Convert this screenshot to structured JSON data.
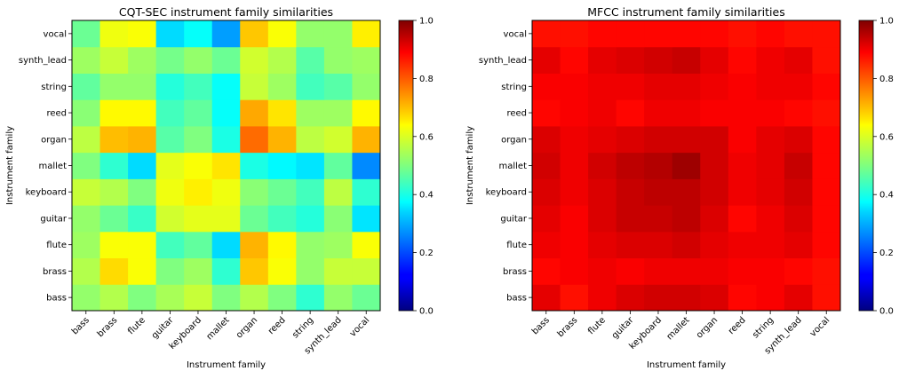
{
  "chart_data": [
    {
      "type": "heatmap",
      "title": "CQT-SEC instrument family similarities",
      "xlabel": "Instrument family",
      "ylabel": "Instrument family",
      "x_categories": [
        "bass",
        "brass",
        "flute",
        "guitar",
        "keyboard",
        "mallet",
        "organ",
        "reed",
        "string",
        "synth_lead",
        "vocal"
      ],
      "y_categories": [
        "bass",
        "brass",
        "flute",
        "guitar",
        "keyboard",
        "mallet",
        "organ",
        "reed",
        "string",
        "synth_lead",
        "vocal"
      ],
      "colorbar": {
        "min": 0.0,
        "max": 1.0,
        "ticks": [
          "0.0",
          "0.2",
          "0.4",
          "0.6",
          "0.8",
          "1.0"
        ],
        "colormap": "jet"
      },
      "values": [
        [
          0.52,
          0.55,
          0.5,
          0.54,
          0.57,
          0.5,
          0.55,
          0.5,
          0.42,
          0.52,
          0.48
        ],
        [
          0.55,
          0.66,
          0.62,
          0.5,
          0.53,
          0.42,
          0.68,
          0.62,
          0.52,
          0.57,
          0.57
        ],
        [
          0.53,
          0.62,
          0.62,
          0.44,
          0.47,
          0.34,
          0.7,
          0.63,
          0.52,
          0.53,
          0.62
        ],
        [
          0.52,
          0.48,
          0.43,
          0.58,
          0.6,
          0.6,
          0.48,
          0.44,
          0.41,
          0.51,
          0.35
        ],
        [
          0.57,
          0.55,
          0.5,
          0.61,
          0.64,
          0.61,
          0.51,
          0.48,
          0.44,
          0.56,
          0.42
        ],
        [
          0.5,
          0.42,
          0.34,
          0.6,
          0.62,
          0.65,
          0.4,
          0.37,
          0.35,
          0.47,
          0.26
        ],
        [
          0.56,
          0.69,
          0.7,
          0.46,
          0.5,
          0.4,
          0.77,
          0.7,
          0.56,
          0.58,
          0.7
        ],
        [
          0.51,
          0.63,
          0.63,
          0.44,
          0.47,
          0.38,
          0.71,
          0.65,
          0.53,
          0.53,
          0.63
        ],
        [
          0.47,
          0.52,
          0.52,
          0.41,
          0.44,
          0.38,
          0.57,
          0.53,
          0.44,
          0.46,
          0.52
        ],
        [
          0.53,
          0.57,
          0.53,
          0.49,
          0.52,
          0.48,
          0.58,
          0.55,
          0.46,
          0.52,
          0.53
        ],
        [
          0.48,
          0.61,
          0.62,
          0.34,
          0.38,
          0.28,
          0.68,
          0.62,
          0.52,
          0.52,
          0.64
        ]
      ]
    },
    {
      "type": "heatmap",
      "title": "MFCC instrument family similarities",
      "xlabel": "Instrument family",
      "ylabel": "Instrument family",
      "x_categories": [
        "bass",
        "brass",
        "flute",
        "guitar",
        "keyboard",
        "mallet",
        "organ",
        "reed",
        "string",
        "synth_lead",
        "vocal"
      ],
      "y_categories": [
        "bass",
        "brass",
        "flute",
        "guitar",
        "keyboard",
        "mallet",
        "organ",
        "reed",
        "string",
        "synth_lead",
        "vocal"
      ],
      "colorbar": {
        "min": 0.0,
        "max": 1.0,
        "ticks": [
          "0.0",
          "0.2",
          "0.4",
          "0.6",
          "0.8",
          "1.0"
        ],
        "colormap": "jet"
      },
      "values": [
        [
          0.9,
          0.86,
          0.89,
          0.91,
          0.92,
          0.92,
          0.91,
          0.87,
          0.88,
          0.9,
          0.86
        ],
        [
          0.87,
          0.88,
          0.89,
          0.88,
          0.89,
          0.89,
          0.89,
          0.88,
          0.88,
          0.87,
          0.86
        ],
        [
          0.89,
          0.88,
          0.9,
          0.91,
          0.91,
          0.92,
          0.9,
          0.89,
          0.89,
          0.9,
          0.87
        ],
        [
          0.9,
          0.88,
          0.91,
          0.93,
          0.93,
          0.94,
          0.91,
          0.87,
          0.89,
          0.91,
          0.87
        ],
        [
          0.91,
          0.89,
          0.91,
          0.93,
          0.94,
          0.94,
          0.92,
          0.89,
          0.9,
          0.92,
          0.87
        ],
        [
          0.92,
          0.89,
          0.92,
          0.94,
          0.95,
          0.97,
          0.92,
          0.89,
          0.9,
          0.93,
          0.87
        ],
        [
          0.91,
          0.89,
          0.9,
          0.91,
          0.92,
          0.92,
          0.92,
          0.88,
          0.9,
          0.91,
          0.87
        ],
        [
          0.87,
          0.88,
          0.89,
          0.87,
          0.89,
          0.89,
          0.88,
          0.88,
          0.88,
          0.87,
          0.86
        ],
        [
          0.88,
          0.88,
          0.89,
          0.89,
          0.9,
          0.9,
          0.89,
          0.88,
          0.89,
          0.89,
          0.87
        ],
        [
          0.9,
          0.87,
          0.9,
          0.91,
          0.92,
          0.93,
          0.9,
          0.87,
          0.89,
          0.9,
          0.86
        ],
        [
          0.86,
          0.86,
          0.87,
          0.87,
          0.87,
          0.87,
          0.87,
          0.86,
          0.87,
          0.86,
          0.86
        ]
      ]
    }
  ]
}
